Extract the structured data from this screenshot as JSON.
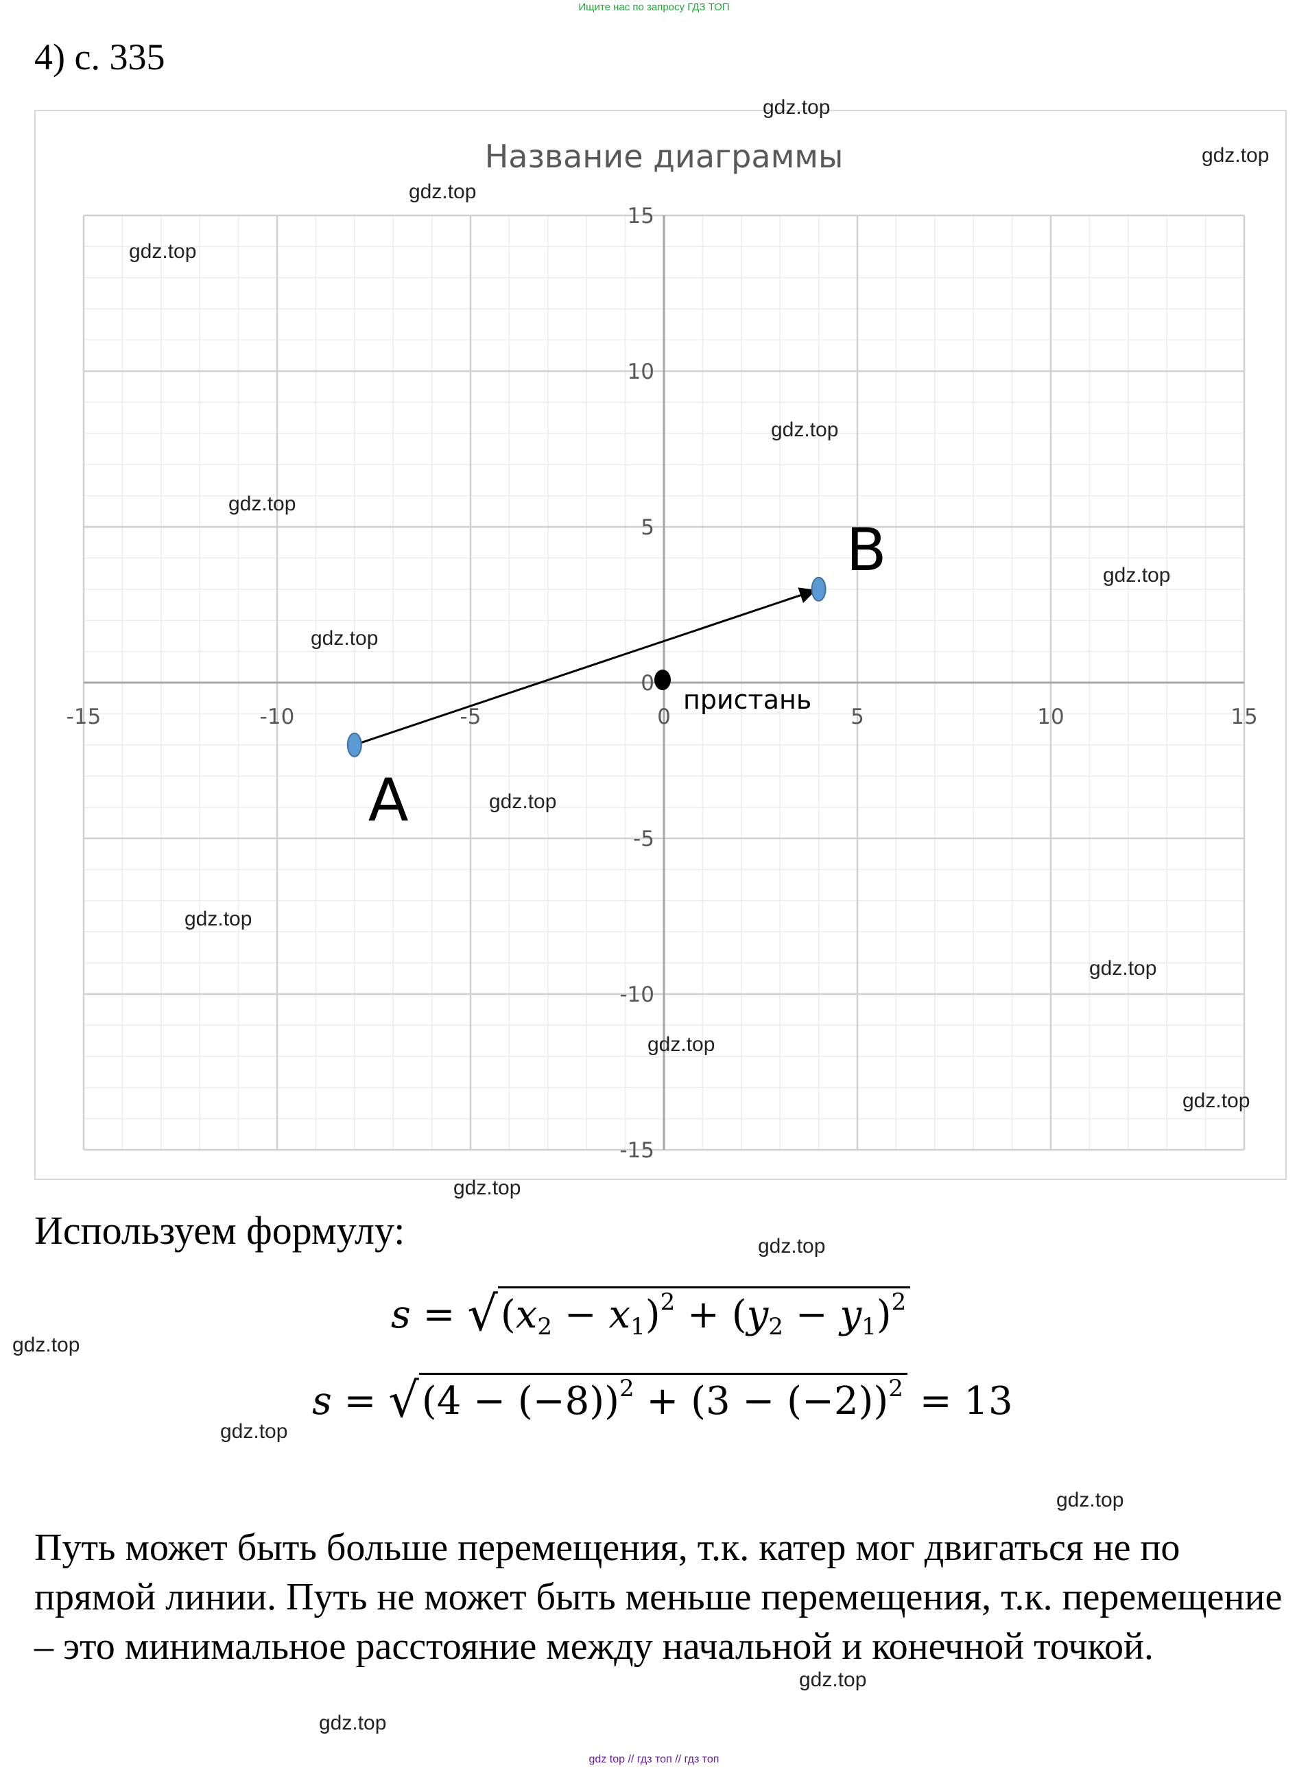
{
  "banner": "Ищите нас по запросу ГДЗ ТОП",
  "heading": "4) с. 335",
  "chart_data": {
    "type": "scatter",
    "title": "Название диаграммы",
    "xlim": [
      -15,
      15
    ],
    "ylim": [
      -15,
      15
    ],
    "x_ticks": [
      "-15",
      "-10",
      "-5",
      "0",
      "5",
      "10",
      "15"
    ],
    "y_ticks": [
      "15",
      "10",
      "5",
      "0",
      "-5",
      "-10",
      "-15"
    ],
    "grid": true,
    "points": [
      {
        "name": "A",
        "x": -8,
        "y": -2,
        "color": "#5b9bd5"
      },
      {
        "name": "B",
        "x": 4,
        "y": 3,
        "color": "#5b9bd5"
      },
      {
        "name": "пристань",
        "x": 0,
        "y": 0,
        "color": "#000000"
      }
    ],
    "arrow": {
      "from": "A",
      "to": "B"
    }
  },
  "lead_text": "Используем формулу:",
  "formula1": {
    "s": "s",
    "eq": " = ",
    "open": "(",
    "x": "x",
    "sub2": "2",
    "minus": " − ",
    "sub1": "1",
    "close": ")",
    "sq": "2",
    "plus": " + ",
    "y": "y"
  },
  "formula2": {
    "s": "s",
    "eq": " = ",
    "expr": "(4 − (−8))",
    "sq": "2",
    "plus": " + ",
    "expr2": "(3 − (−2))",
    "result": " = 13"
  },
  "paragraph": "Путь может быть больше перемещения, т.к. катер мог двигаться не по прямой линии. Путь не может быть меньше перемещения, т.к. перемещение – это минимальное расстояние между начальной и конечной точкой.",
  "watermark": "gdz.top",
  "footer": "gdz top  //  гдз топ  //  гдз топ"
}
